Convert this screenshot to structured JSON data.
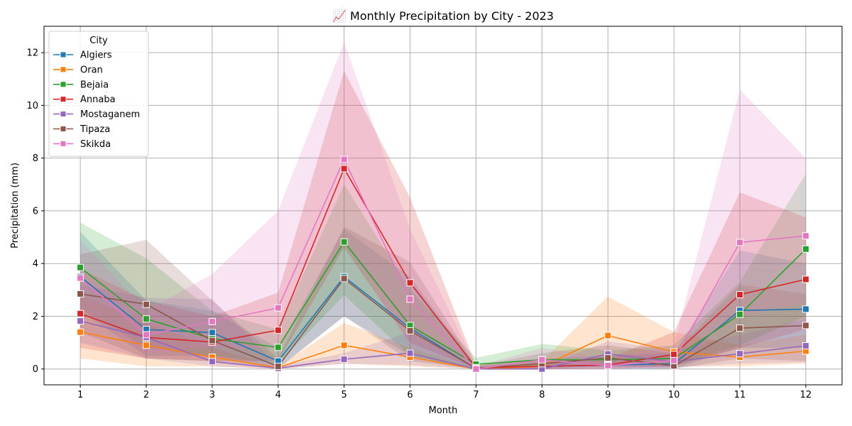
{
  "chart_data": {
    "type": "line",
    "title": "📈 Monthly Precipitation by City - 2023",
    "xlabel": "Month",
    "ylabel": "Precipitation (mm)",
    "x": [
      1,
      2,
      3,
      4,
      5,
      6,
      7,
      8,
      9,
      10,
      11,
      12
    ],
    "xlim": [
      0.45,
      12.55
    ],
    "ylim": [
      -0.6,
      13.0
    ],
    "yticks": [
      0,
      2,
      4,
      6,
      8,
      10,
      12
    ],
    "grid": true,
    "legend": {
      "title": "City",
      "position": "top-left"
    },
    "series": [
      {
        "name": "Algiers",
        "color": "#1f77b4",
        "values": [
          3.5,
          1.5,
          1.38,
          0.3,
          3.5,
          1.55,
          0.02,
          0.1,
          0.15,
          0.2,
          2.22,
          2.27
        ],
        "lower": [
          2.2,
          0.5,
          0.5,
          0.05,
          2.0,
          0.5,
          0.0,
          0.0,
          0.0,
          0.0,
          0.8,
          0.8
        ],
        "upper": [
          5.2,
          2.6,
          2.2,
          0.8,
          5.3,
          3.5,
          0.1,
          0.4,
          0.5,
          0.6,
          4.5,
          4.0
        ]
      },
      {
        "name": "Oran",
        "color": "#ff7f0e",
        "values": [
          1.4,
          0.9,
          0.45,
          0.05,
          0.9,
          0.45,
          0.0,
          0.1,
          1.27,
          0.65,
          0.45,
          0.68
        ],
        "lower": [
          0.4,
          0.1,
          0.1,
          0.0,
          0.2,
          0.1,
          0.0,
          0.0,
          0.2,
          0.1,
          0.1,
          0.2
        ],
        "upper": [
          2.8,
          1.8,
          0.8,
          0.1,
          1.75,
          0.8,
          0.0,
          0.3,
          2.75,
          1.4,
          0.9,
          1.3
        ]
      },
      {
        "name": "Bejaia",
        "color": "#2ca02c",
        "values": [
          3.85,
          1.9,
          1.15,
          0.82,
          4.82,
          1.65,
          0.18,
          0.35,
          0.35,
          0.4,
          2.07,
          4.55
        ],
        "lower": [
          2.3,
          0.8,
          0.5,
          0.2,
          2.8,
          0.5,
          0.0,
          0.1,
          0.1,
          0.1,
          0.9,
          2.0
        ],
        "upper": [
          5.55,
          4.2,
          2.2,
          1.5,
          7.0,
          3.0,
          0.42,
          0.95,
          0.7,
          0.9,
          3.3,
          7.4
        ]
      },
      {
        "name": "Annaba",
        "color": "#d62728",
        "values": [
          2.1,
          1.2,
          1.02,
          1.47,
          7.6,
          3.27,
          0.05,
          0.1,
          0.15,
          0.55,
          2.82,
          3.4
        ],
        "lower": [
          0.8,
          0.4,
          0.3,
          0.3,
          4.6,
          1.0,
          0.0,
          0.0,
          0.0,
          0.1,
          0.8,
          1.5
        ],
        "upper": [
          3.8,
          2.6,
          2.0,
          2.9,
          11.3,
          6.5,
          0.15,
          0.3,
          0.4,
          1.4,
          6.7,
          5.75
        ]
      },
      {
        "name": "Mostaganem",
        "color": "#9467bd",
        "values": [
          1.82,
          1.2,
          0.28,
          0.03,
          0.37,
          0.6,
          0.0,
          0.0,
          0.57,
          0.28,
          0.58,
          0.88
        ],
        "lower": [
          1.0,
          0.4,
          0.1,
          0.0,
          0.2,
          0.15,
          0.0,
          0.0,
          0.1,
          0.05,
          0.2,
          0.25
        ],
        "upper": [
          3.2,
          2.7,
          2.65,
          0.1,
          0.6,
          1.4,
          0.05,
          0.1,
          1.05,
          0.7,
          1.3,
          1.9
        ]
      },
      {
        "name": "Tipaza",
        "color": "#8c564b",
        "values": [
          2.85,
          2.45,
          1.08,
          0.1,
          3.43,
          1.45,
          0.03,
          0.2,
          0.42,
          0.12,
          1.55,
          1.65
        ],
        "lower": [
          1.4,
          0.4,
          0.3,
          0.0,
          2.0,
          0.3,
          0.0,
          0.0,
          0.05,
          0.0,
          0.4,
          0.3
        ],
        "upper": [
          4.35,
          4.9,
          2.6,
          0.4,
          5.4,
          4.05,
          0.1,
          0.6,
          0.9,
          0.6,
          3.2,
          2.85
        ]
      },
      {
        "name": "Skikda",
        "color": "#e377c2",
        "values": [
          3.45,
          1.3,
          1.8,
          2.32,
          7.95,
          2.65,
          0.0,
          0.35,
          0.13,
          0.32,
          4.8,
          5.05
        ],
        "lower": [
          2.3,
          0.6,
          0.8,
          0.8,
          5.0,
          0.8,
          0.0,
          0.0,
          0.0,
          0.05,
          2.0,
          2.5
        ],
        "upper": [
          4.9,
          2.2,
          3.6,
          6.0,
          12.4,
          5.3,
          0.1,
          0.8,
          0.4,
          0.9,
          10.6,
          8.0
        ]
      }
    ]
  }
}
